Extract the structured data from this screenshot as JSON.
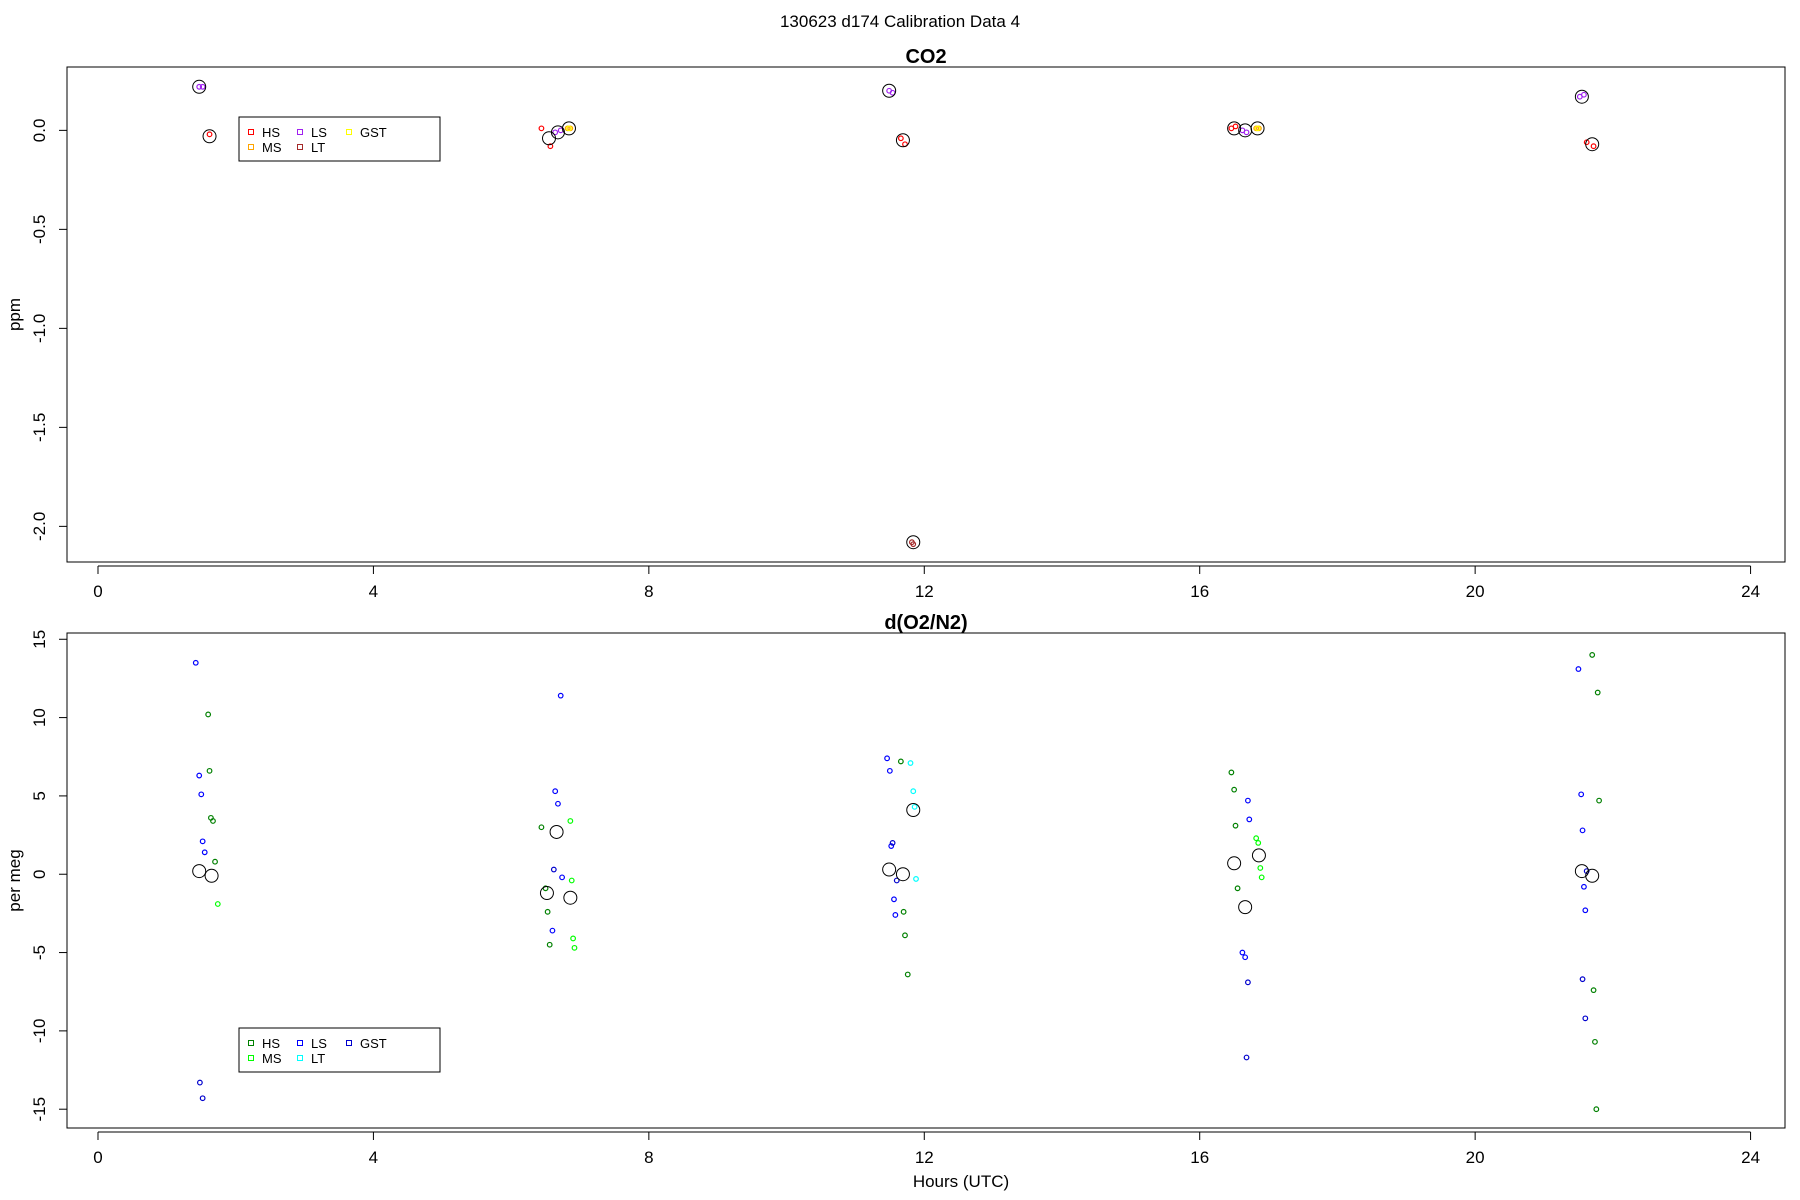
{
  "figure": {
    "title": "130623   d174   Calibration Data 4"
  },
  "chart_data": [
    {
      "type": "scatter",
      "title": "CO2",
      "xlabel": "",
      "ylabel": "ppm",
      "xlim": [
        -0.45,
        24.5
      ],
      "ylim": [
        -2.18,
        0.32
      ],
      "xticks": [
        0,
        4,
        8,
        12,
        16,
        20,
        24
      ],
      "yticks": [
        0.0,
        -0.5,
        -1.0,
        -1.5,
        -2.0
      ],
      "ytick_labels": [
        "0.0",
        "-0.5",
        "-1.0",
        "-1.5",
        "-2.0"
      ],
      "legend": {
        "placement": "upper-left",
        "entries": [
          "HS",
          "MS",
          "LS",
          "LT",
          "GST"
        ]
      },
      "series": [
        {
          "name": "HS",
          "color": "#ff0000",
          "x": [
            1.62,
            6.44,
            6.57,
            11.66,
            11.72,
            16.46,
            16.52,
            21.62,
            21.72
          ],
          "y": [
            -0.02,
            0.01,
            -0.08,
            -0.04,
            -0.07,
            0.01,
            0.02,
            -0.06,
            -0.08
          ]
        },
        {
          "name": "MS",
          "color": "#ffa500",
          "x": [
            6.82,
            6.86,
            16.82,
            16.86
          ],
          "y": [
            0.01,
            0.01,
            0.01,
            0.01
          ]
        },
        {
          "name": "LS",
          "color": "#a020f0",
          "x": [
            1.47,
            1.52,
            6.64,
            6.72,
            11.49,
            11.54,
            16.62,
            16.68,
            21.52,
            21.58
          ],
          "y": [
            0.22,
            0.22,
            -0.01,
            0.0,
            0.2,
            0.19,
            0.0,
            -0.01,
            0.17,
            0.18
          ]
        },
        {
          "name": "LT",
          "color": "#a52a2a",
          "x": [
            11.82,
            11.84
          ],
          "y": [
            -2.08,
            -2.09
          ]
        },
        {
          "name": "GST",
          "color": "#ffff00",
          "x": [
            6.84,
            16.84
          ],
          "y": [
            0.01,
            0.01
          ]
        }
      ],
      "means": {
        "x": [
          1.47,
          1.62,
          6.55,
          6.68,
          6.84,
          11.49,
          11.69,
          11.84,
          16.5,
          16.66,
          16.84,
          21.55,
          21.7
        ],
        "y": [
          0.22,
          -0.03,
          -0.04,
          -0.01,
          0.01,
          0.2,
          -0.05,
          -2.08,
          0.01,
          0.0,
          0.01,
          0.17,
          -0.07
        ]
      }
    },
    {
      "type": "scatter",
      "title": "d(O2/N2)",
      "xlabel": "Hours (UTC)",
      "ylabel": "per meg",
      "xlim": [
        -0.45,
        24.5
      ],
      "ylim": [
        -16.2,
        15.4
      ],
      "xticks": [
        0,
        4,
        8,
        12,
        16,
        20,
        24
      ],
      "yticks": [
        15,
        10,
        5,
        0,
        -5,
        -10,
        -15
      ],
      "ytick_labels": [
        "15",
        "10",
        "5",
        "0",
        "-5",
        "-10",
        "-15"
      ],
      "legend": {
        "placement": "lower-left",
        "entries": [
          "HS",
          "MS",
          "LS",
          "LT",
          "GST"
        ]
      },
      "series": [
        {
          "name": "HS",
          "color": "#008000",
          "x": [
            1.6,
            1.62,
            1.64,
            1.67,
            1.7,
            6.44,
            6.5,
            6.53,
            6.56,
            11.66,
            11.7,
            11.72,
            11.76,
            16.46,
            16.5,
            16.52,
            16.55,
            21.7,
            21.72,
            21.74,
            21.76,
            21.78,
            21.8
          ],
          "y": [
            10.2,
            6.6,
            3.6,
            3.4,
            0.8,
            3.0,
            -0.9,
            -2.4,
            -4.5,
            7.2,
            -2.4,
            -3.9,
            -6.4,
            6.5,
            5.4,
            3.1,
            -0.9,
            14.0,
            -7.4,
            -10.7,
            -15.0,
            11.6,
            4.7
          ]
        },
        {
          "name": "MS",
          "color": "#00ff00",
          "x": [
            1.74,
            6.86,
            6.88,
            6.9,
            6.92,
            16.82,
            16.85,
            16.88,
            16.9
          ],
          "y": [
            -1.9,
            3.4,
            -0.4,
            -4.1,
            -4.7,
            2.3,
            2.0,
            0.4,
            -0.2
          ]
        },
        {
          "name": "LS",
          "color": "#0000ff",
          "x": [
            1.42,
            1.47,
            1.5,
            1.52,
            1.55,
            6.64,
            6.68,
            6.72,
            6.74,
            6.6,
            11.46,
            11.5,
            11.52,
            11.56,
            11.58,
            16.62,
            16.66,
            16.7,
            16.72,
            21.5,
            21.54,
            21.56,
            21.58,
            21.6
          ],
          "y": [
            13.5,
            6.3,
            5.1,
            2.1,
            1.4,
            5.3,
            4.5,
            11.4,
            -0.2,
            -3.6,
            7.4,
            6.6,
            1.8,
            -1.6,
            -2.6,
            -5.0,
            -5.3,
            4.7,
            3.5,
            13.1,
            5.1,
            2.8,
            -0.8,
            -2.3
          ]
        },
        {
          "name": "LT",
          "color": "#00ffff",
          "x": [
            11.8,
            11.84,
            11.86,
            11.88
          ],
          "y": [
            7.1,
            5.3,
            4.3,
            -0.3
          ]
        },
        {
          "name": "GST",
          "color": "#0000cd",
          "x": [
            1.48,
            1.52,
            6.62,
            11.54,
            11.6,
            16.68,
            16.7,
            21.62,
            21.56,
            21.6
          ],
          "y": [
            -13.3,
            -14.3,
            0.3,
            2.0,
            -0.4,
            -11.7,
            -6.9,
            0.2,
            -6.7,
            -9.2
          ]
        }
      ],
      "means": {
        "x": [
          1.47,
          1.65,
          6.52,
          6.66,
          6.86,
          11.49,
          11.69,
          11.84,
          16.5,
          16.66,
          16.86,
          21.55,
          21.7
        ],
        "y": [
          0.2,
          -0.1,
          -1.2,
          2.7,
          -1.5,
          0.3,
          0.0,
          4.1,
          0.7,
          -2.1,
          1.2,
          0.2,
          -0.1
        ]
      }
    }
  ]
}
